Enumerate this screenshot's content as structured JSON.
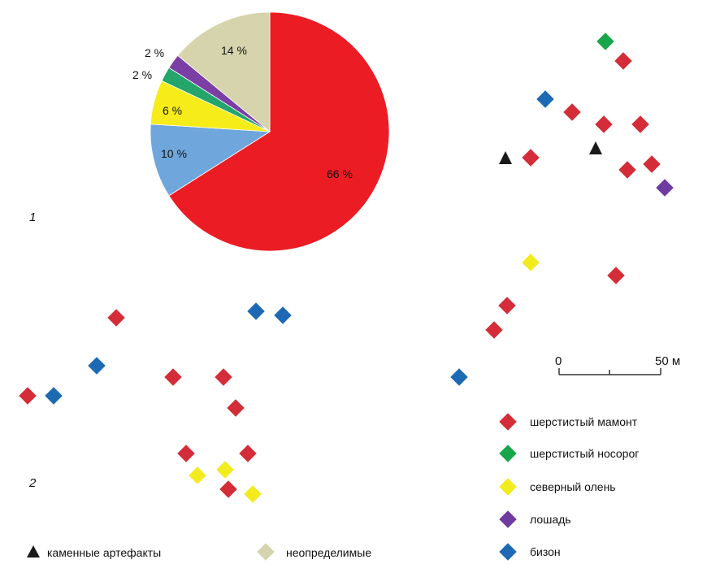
{
  "chart_data": {
    "type": "pie",
    "slices": [
      {
        "label": "66 %",
        "value": 66,
        "color": "#ec1c24"
      },
      {
        "label": "10 %",
        "value": 10,
        "color": "#6fa6dc"
      },
      {
        "label": "6 %",
        "value": 6,
        "color": "#f5ec1a"
      },
      {
        "label": "2 %",
        "value": 2,
        "color": "#23a56b"
      },
      {
        "label": "2 %",
        "value": 2,
        "color": "#7a3ea4"
      },
      {
        "label": "14 %",
        "value": 14,
        "color": "#d6d4ac"
      }
    ]
  },
  "panels": {
    "label_1": "1",
    "label_2": "2"
  },
  "scale_bar": {
    "start_label": "0",
    "end_label": "50 м"
  },
  "legend": {
    "species": [
      {
        "label": "шерстистый мамонт",
        "color": "#d42d39"
      },
      {
        "label": "шерстистый носорог",
        "color": "#17a74a"
      },
      {
        "label": "северный олень",
        "color": "#f2ec1e"
      },
      {
        "label": "лошадь",
        "color": "#6e3ba0"
      },
      {
        "label": "бизон",
        "color": "#1e69b3"
      }
    ],
    "artifacts_label": "каменные артефакты",
    "undetermined_label": "неопределимые",
    "undetermined_color": "#d6d4ac"
  },
  "colors": {
    "mammoth": "#d42d39",
    "rhino": "#17a74a",
    "reindeer": "#f2ec1e",
    "horse": "#6e3ba0",
    "bison": "#1e69b3"
  }
}
